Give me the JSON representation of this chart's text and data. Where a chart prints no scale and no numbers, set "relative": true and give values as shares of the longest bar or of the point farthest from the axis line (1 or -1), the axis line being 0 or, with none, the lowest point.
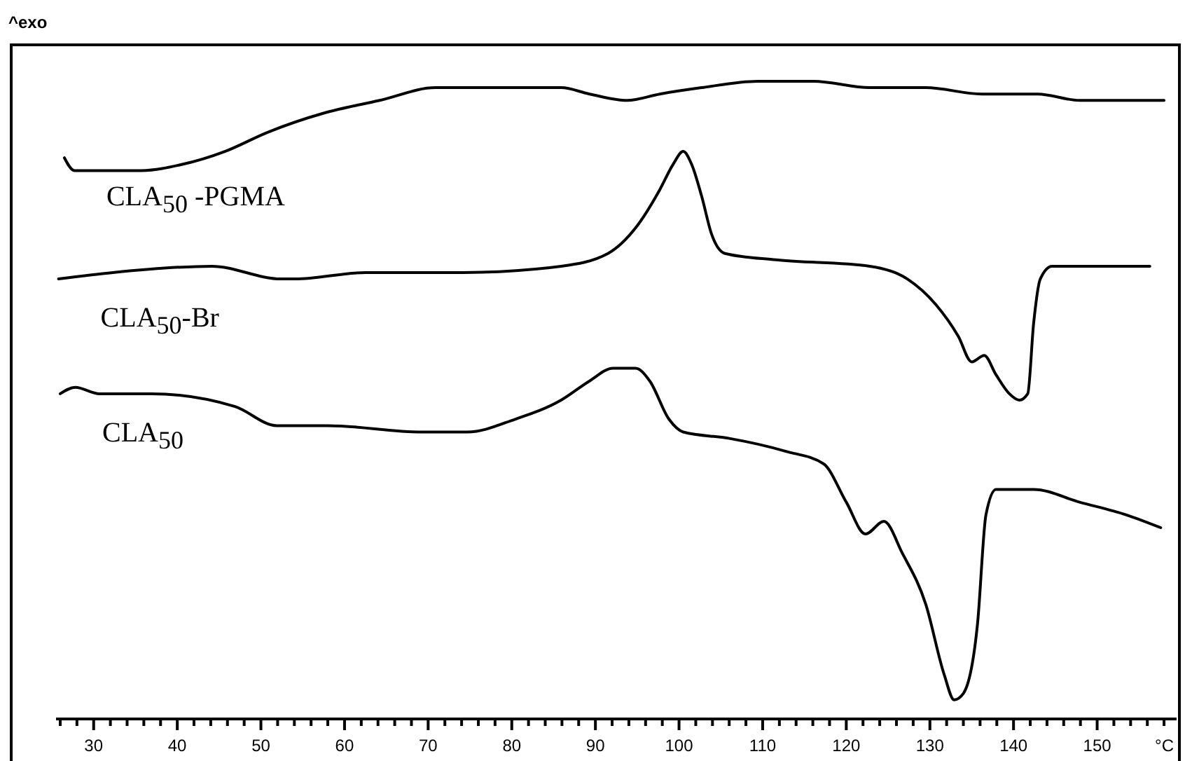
{
  "chart_data": {
    "type": "line",
    "relative": true,
    "ylabel": "^exo",
    "xlabel": "°C",
    "xlim": [
      25.5,
      159.5
    ],
    "xticks": [
      {
        "value": 26,
        "label": null
      },
      {
        "value": 28,
        "label": null
      },
      30,
      {
        "value": 32,
        "label": null
      },
      {
        "value": 34,
        "label": null
      },
      {
        "value": 36,
        "label": null
      },
      {
        "value": 38,
        "label": null
      },
      40,
      {
        "value": 42,
        "label": null
      },
      {
        "value": 44,
        "label": null
      },
      {
        "value": 46,
        "label": null
      },
      {
        "value": 48,
        "label": null
      },
      50,
      {
        "value": 52,
        "label": null
      },
      {
        "value": 54,
        "label": null
      },
      {
        "value": 56,
        "label": null
      },
      {
        "value": 58,
        "label": null
      },
      60,
      {
        "value": 62,
        "label": null
      },
      {
        "value": 64,
        "label": null
      },
      {
        "value": 66,
        "label": null
      },
      {
        "value": 68,
        "label": null
      },
      70,
      {
        "value": 72,
        "label": null
      },
      {
        "value": 74,
        "label": null
      },
      {
        "value": 76,
        "label": null
      },
      {
        "value": 78,
        "label": null
      },
      80,
      {
        "value": 82,
        "label": null
      },
      {
        "value": 84,
        "label": null
      },
      {
        "value": 86,
        "label": null
      },
      {
        "value": 88,
        "label": null
      },
      90,
      {
        "value": 92,
        "label": null
      },
      {
        "value": 94,
        "label": null
      },
      {
        "value": 96,
        "label": null
      },
      {
        "value": 98,
        "label": null
      },
      100,
      {
        "value": 102,
        "label": null
      },
      {
        "value": 104,
        "label": null
      },
      {
        "value": 106,
        "label": null
      },
      {
        "value": 108,
        "label": null
      },
      110,
      {
        "value": 112,
        "label": null
      },
      {
        "value": 114,
        "label": null
      },
      {
        "value": 116,
        "label": null
      },
      {
        "value": 118,
        "label": null
      },
      120,
      {
        "value": 122,
        "label": null
      },
      {
        "value": 124,
        "label": null
      },
      {
        "value": 126,
        "label": null
      },
      {
        "value": 128,
        "label": null
      },
      130,
      {
        "value": 132,
        "label": null
      },
      {
        "value": 134,
        "label": null
      },
      {
        "value": 136,
        "label": null
      },
      {
        "value": 138,
        "label": null
      },
      140,
      {
        "value": 142,
        "label": null
      },
      {
        "value": 144,
        "label": null
      },
      {
        "value": 146,
        "label": null
      },
      {
        "value": 148,
        "label": null
      },
      150,
      {
        "value": 152,
        "label": null
      },
      {
        "value": 154,
        "label": null
      },
      {
        "value": 156,
        "label": null
      },
      {
        "value": 158,
        "label": null
      }
    ],
    "series": [
      {
        "name": "CLA$_{50}$ -PGMA",
        "color": "#000000",
        "x": [
          26.5,
          27.7,
          29,
          35.7,
          40.7,
          45.7,
          50.8,
          57.5,
          64.2,
          70.9,
          77.6,
          82.6,
          85.9,
          89.3,
          93.8,
          97.7,
          102.7,
          109.4,
          116.1,
          122.8,
          129.5,
          136.2,
          142.9,
          147.9,
          158
        ],
        "values": [
          0.88,
          0.86,
          0.86,
          0.86,
          0.87,
          0.89,
          0.92,
          0.95,
          0.97,
          0.99,
          0.99,
          0.99,
          0.99,
          0.98,
          0.97,
          0.98,
          0.99,
          1.0,
          1.0,
          0.99,
          0.99,
          0.98,
          0.98,
          0.97,
          0.97
        ]
      },
      {
        "name": "CLA$_{50}$-Br",
        "color": "#000000",
        "x": [
          25.8,
          32.3,
          44.1,
          52.4,
          54.1,
          62.5,
          74.2,
          85.9,
          91.5,
          94.8,
          97.7,
          99.3,
          100.5,
          101.5,
          102.7,
          103.9,
          105.5,
          111.6,
          122.8,
          127.3,
          130.7,
          133.4,
          135,
          136.5,
          137.9,
          139.5,
          140.7,
          141.7,
          142.4,
          143.2,
          144.6,
          156.3
        ],
        "values": [
          0.69,
          0.7,
          0.71,
          0.69,
          0.69,
          0.7,
          0.7,
          0.71,
          0.73,
          0.77,
          0.83,
          0.87,
          0.89,
          0.87,
          0.82,
          0.76,
          0.73,
          0.72,
          0.71,
          0.69,
          0.65,
          0.6,
          0.56,
          0.57,
          0.54,
          0.51,
          0.5,
          0.51,
          0.62,
          0.69,
          0.71,
          0.71
        ]
      },
      {
        "name": "CLA$_{50}$",
        "color": "#000000",
        "x": [
          26,
          27.8,
          30.7,
          36.9,
          46.9,
          51.9,
          58,
          69.2,
          74.7,
          80.4,
          85.9,
          89.3,
          92.1,
          94.8,
          96.5,
          98.8,
          100.5,
          106,
          112.7,
          117.3,
          120,
          122.3,
          124.5,
          126.7,
          129.5,
          131.7,
          132.9,
          134,
          135.7,
          136.7,
          137.9,
          142.4,
          147.9,
          153.5,
          157.6
        ],
        "values": [
          0.51,
          0.52,
          0.51,
          0.51,
          0.49,
          0.46,
          0.46,
          0.45,
          0.45,
          0.47,
          0.5,
          0.53,
          0.55,
          0.55,
          0.53,
          0.47,
          0.45,
          0.44,
          0.42,
          0.4,
          0.34,
          0.29,
          0.31,
          0.26,
          0.18,
          0.07,
          0.03,
          0.04,
          0.15,
          0.32,
          0.36,
          0.36,
          0.34,
          0.32,
          0.3
        ]
      }
    ]
  }
}
